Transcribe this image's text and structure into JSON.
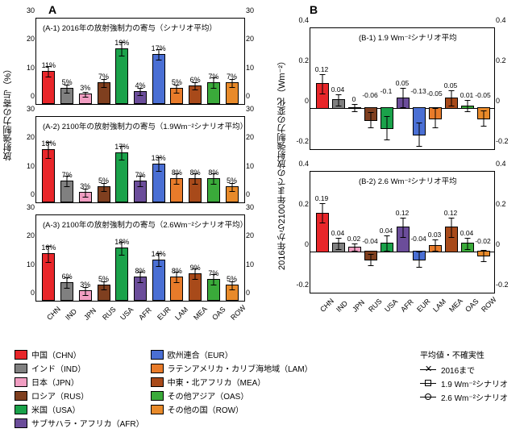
{
  "groupA_label": "A",
  "groupB_label": "B",
  "ylabelA": "放射強制力の寄与（%）",
  "ylabelB": "2016年から2100年までの放射強制力の変化（Wm⁻²）",
  "categories": [
    "CHN",
    "IND",
    "JPN",
    "RUS",
    "USA",
    "AFR",
    "EUR",
    "LAM",
    "MEA",
    "OAS",
    "ROW"
  ],
  "colors": {
    "CHN": "#e8262a",
    "IND": "#808080",
    "JPN": "#f19ec2",
    "RUS": "#7f3f1f",
    "USA": "#1aa24a",
    "AFR": "#6b4d9a",
    "EUR": "#4a6fd4",
    "LAM": "#e87b2a",
    "MEA": "#a84a1a",
    "OAS": "#3aaa3a",
    "ROW": "#e88a2a"
  },
  "panelsA": [
    {
      "id": "A-1",
      "title": "(A-1) 2016年の放射強制力の寄与（シナリオ平均）",
      "values": [
        11,
        5,
        3,
        7,
        19,
        4,
        17,
        5,
        6,
        7,
        7
      ],
      "err": [
        2,
        1.5,
        1,
        1.5,
        2.5,
        1.5,
        2,
        1.5,
        1.5,
        2,
        1.5
      ],
      "ymax": 30,
      "ystep": 10
    },
    {
      "id": "A-2",
      "title": "(A-2) 2100年の放射強制力の寄与（1.9Wm⁻²シナリオ平均）",
      "values": [
        18,
        7,
        3,
        5,
        17,
        7,
        13,
        8,
        8,
        8,
        5
      ],
      "err": [
        3,
        2,
        1.5,
        1.5,
        2.5,
        2,
        2.5,
        2,
        2,
        2,
        1.5
      ],
      "ymax": 30,
      "ystep": 10
    },
    {
      "id": "A-3",
      "title": "(A-3) 2100年の放射強制力の寄与（2.6Wm⁻²シナリオ平均）",
      "values": [
        16,
        6,
        3,
        5,
        18,
        8,
        14,
        8,
        9,
        7,
        5
      ],
      "err": [
        3,
        2,
        1.5,
        1.5,
        2.5,
        2,
        2.5,
        2,
        2,
        2,
        1.5
      ],
      "ymax": 30,
      "ystep": 10
    }
  ],
  "panelsB": [
    {
      "id": "B-1",
      "title": "(B-1) 1.9 Wm⁻²シナリオ平均",
      "values": [
        0.12,
        0.04,
        0,
        -0.06,
        -0.1,
        0.05,
        -0.13,
        -0.05,
        0.05,
        0.01,
        -0.05
      ],
      "err": [
        0.05,
        0.03,
        0.02,
        0.04,
        0.06,
        0.05,
        0.06,
        0.05,
        0.04,
        0.03,
        0.04
      ],
      "ylim": [
        -0.2,
        0.4
      ],
      "ystep": 0.2
    },
    {
      "id": "B-2",
      "title": "(B-2) 2.6 Wm⁻²シナリオ平均",
      "values": [
        0.19,
        0.04,
        0.02,
        -0.04,
        0.04,
        0.12,
        -0.04,
        0.03,
        0.12,
        0.04,
        -0.02
      ],
      "err": [
        0.05,
        0.03,
        0.02,
        0.03,
        0.04,
        0.05,
        0.04,
        0.03,
        0.05,
        0.03,
        0.03
      ],
      "ylim": [
        -0.2,
        0.4
      ],
      "ystep": 0.2
    }
  ],
  "legend": [
    [
      "中国（CHN）",
      "CHN"
    ],
    [
      "インド（IND）",
      "IND"
    ],
    [
      "日本（JPN）",
      "JPN"
    ],
    [
      "ロシア（RUS）",
      "RUS"
    ],
    [
      "米国（USA）",
      "USA"
    ],
    [
      "サブサハラ・アフリカ（AFR）",
      "AFR"
    ],
    [
      "欧州連合（EUR）",
      "EUR"
    ],
    [
      "ラテンアメリカ・カリブ海地域（LAM）",
      "LAM"
    ],
    [
      "中東・北アフリカ（MEA）",
      "MEA"
    ],
    [
      "その他アジア（OAS）",
      "OAS"
    ],
    [
      "その他の国（ROW）",
      "ROW"
    ]
  ],
  "uncert": {
    "title": "平均値・不確実性",
    "rows": [
      [
        "x",
        "2016まで"
      ],
      [
        "sq",
        "1.9 Wm⁻²シナリオ"
      ],
      [
        "o",
        "2.6 Wm⁻²シナリオ"
      ]
    ]
  }
}
